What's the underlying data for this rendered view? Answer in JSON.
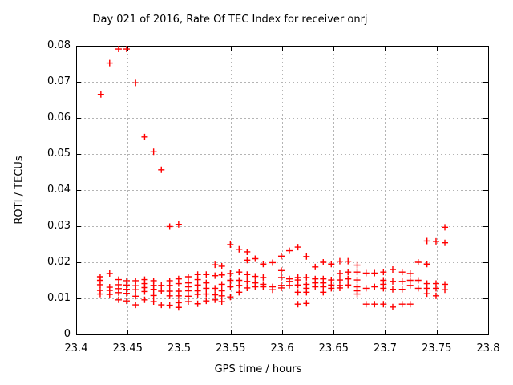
{
  "chart_data": {
    "type": "scatter",
    "title": "Day 021 of 2016, Rate Of TEC Index for receiver onrj",
    "xlabel": "GPS time / hours",
    "ylabel": "ROTI / TECUs",
    "xlim": [
      23.4,
      23.8
    ],
    "ylim": [
      0,
      0.08
    ],
    "xticks": [
      {
        "value": 23.4,
        "label": "23.4"
      },
      {
        "value": 23.45,
        "label": "23.45"
      },
      {
        "value": 23.5,
        "label": "23.5"
      },
      {
        "value": 23.55,
        "label": "23.55"
      },
      {
        "value": 23.6,
        "label": "23.6"
      },
      {
        "value": 23.65,
        "label": "23.65"
      },
      {
        "value": 23.7,
        "label": "23.7"
      },
      {
        "value": 23.75,
        "label": "23.75"
      },
      {
        "value": 23.8,
        "label": "23.8"
      }
    ],
    "yticks": [
      {
        "value": 0,
        "label": "0"
      },
      {
        "value": 0.01,
        "label": "0.01"
      },
      {
        "value": 0.02,
        "label": "0.02"
      },
      {
        "value": 0.03,
        "label": "0.03"
      },
      {
        "value": 0.04,
        "label": "0.04"
      },
      {
        "value": 0.05,
        "label": "0.05"
      },
      {
        "value": 0.06,
        "label": "0.06"
      },
      {
        "value": 0.07,
        "label": "0.07"
      },
      {
        "value": 0.08,
        "label": "0.08"
      }
    ],
    "grid": {
      "show": true,
      "color": "#b4b4b4",
      "style": "dashed"
    },
    "legend": "none",
    "marker": {
      "symbol": "plus",
      "color": "#ff0000",
      "size": 9
    },
    "axis_color": "#000000",
    "background_color": "#ffffff",
    "points": [
      [
        23.4233,
        0.016
      ],
      [
        23.4233,
        0.015
      ],
      [
        23.4233,
        0.0138
      ],
      [
        23.4233,
        0.0122
      ],
      [
        23.4233,
        0.0112
      ],
      [
        23.424,
        0.0665
      ],
      [
        23.4325,
        0.0752
      ],
      [
        23.4325,
        0.0169
      ],
      [
        23.4325,
        0.0131
      ],
      [
        23.4325,
        0.0122
      ],
      [
        23.4325,
        0.0111
      ],
      [
        23.4412,
        0.0791
      ],
      [
        23.4412,
        0.0152
      ],
      [
        23.4412,
        0.0138
      ],
      [
        23.4412,
        0.0127
      ],
      [
        23.4412,
        0.0116
      ],
      [
        23.4412,
        0.0096
      ],
      [
        23.449,
        0.0791
      ],
      [
        23.449,
        0.0149
      ],
      [
        23.449,
        0.0137
      ],
      [
        23.449,
        0.0125
      ],
      [
        23.449,
        0.0114
      ],
      [
        23.449,
        0.0093
      ],
      [
        23.4577,
        0.0697
      ],
      [
        23.4577,
        0.0149
      ],
      [
        23.4577,
        0.0135
      ],
      [
        23.4577,
        0.0124
      ],
      [
        23.4577,
        0.0106
      ],
      [
        23.4577,
        0.0082
      ],
      [
        23.4665,
        0.0547
      ],
      [
        23.4665,
        0.0152
      ],
      [
        23.4665,
        0.0141
      ],
      [
        23.4665,
        0.013
      ],
      [
        23.4665,
        0.0119
      ],
      [
        23.4665,
        0.0096
      ],
      [
        23.4752,
        0.0506
      ],
      [
        23.4752,
        0.0149
      ],
      [
        23.4752,
        0.0136
      ],
      [
        23.4752,
        0.0125
      ],
      [
        23.4752,
        0.0108
      ],
      [
        23.4752,
        0.0091
      ],
      [
        23.4827,
        0.0456
      ],
      [
        23.4827,
        0.0136
      ],
      [
        23.4827,
        0.012
      ],
      [
        23.4827,
        0.0082
      ],
      [
        23.4908,
        0.0299
      ],
      [
        23.4908,
        0.0149
      ],
      [
        23.4908,
        0.0136
      ],
      [
        23.4908,
        0.012
      ],
      [
        23.4908,
        0.0107
      ],
      [
        23.4908,
        0.0081
      ],
      [
        23.4995,
        0.0305
      ],
      [
        23.4995,
        0.0154
      ],
      [
        23.4995,
        0.0141
      ],
      [
        23.4995,
        0.012
      ],
      [
        23.4995,
        0.0107
      ],
      [
        23.4995,
        0.0088
      ],
      [
        23.4995,
        0.0075
      ],
      [
        23.5089,
        0.016
      ],
      [
        23.5089,
        0.0143
      ],
      [
        23.5089,
        0.0132
      ],
      [
        23.5089,
        0.0121
      ],
      [
        23.5089,
        0.0106
      ],
      [
        23.5089,
        0.0091
      ],
      [
        23.518,
        0.0166
      ],
      [
        23.518,
        0.0152
      ],
      [
        23.518,
        0.0137
      ],
      [
        23.518,
        0.0121
      ],
      [
        23.518,
        0.0111
      ],
      [
        23.518,
        0.0085
      ],
      [
        23.5263,
        0.0166
      ],
      [
        23.5263,
        0.0143
      ],
      [
        23.5263,
        0.0128
      ],
      [
        23.5263,
        0.0112
      ],
      [
        23.5263,
        0.0093
      ],
      [
        23.5348,
        0.0193
      ],
      [
        23.5348,
        0.0163
      ],
      [
        23.5348,
        0.0128
      ],
      [
        23.5348,
        0.011
      ],
      [
        23.5348,
        0.0096
      ],
      [
        23.5414,
        0.0189
      ],
      [
        23.5414,
        0.0165
      ],
      [
        23.5414,
        0.0139
      ],
      [
        23.5414,
        0.0121
      ],
      [
        23.5414,
        0.0107
      ],
      [
        23.5414,
        0.0091
      ],
      [
        23.5497,
        0.0249
      ],
      [
        23.5497,
        0.0169
      ],
      [
        23.5497,
        0.015
      ],
      [
        23.5497,
        0.0132
      ],
      [
        23.5497,
        0.0104
      ],
      [
        23.5582,
        0.0236
      ],
      [
        23.5582,
        0.0173
      ],
      [
        23.5582,
        0.015
      ],
      [
        23.5582,
        0.0136
      ],
      [
        23.5582,
        0.0117
      ],
      [
        23.566,
        0.0229
      ],
      [
        23.566,
        0.0206
      ],
      [
        23.566,
        0.0166
      ],
      [
        23.566,
        0.0147
      ],
      [
        23.566,
        0.0129
      ],
      [
        23.5738,
        0.021
      ],
      [
        23.5738,
        0.0161
      ],
      [
        23.5738,
        0.0143
      ],
      [
        23.5738,
        0.0132
      ],
      [
        23.5816,
        0.0195
      ],
      [
        23.5816,
        0.0158
      ],
      [
        23.5816,
        0.0139
      ],
      [
        23.5816,
        0.0132
      ],
      [
        23.5907,
        0.0199
      ],
      [
        23.5907,
        0.0132
      ],
      [
        23.5907,
        0.0124
      ],
      [
        23.5992,
        0.0217
      ],
      [
        23.5992,
        0.0177
      ],
      [
        23.5992,
        0.0158
      ],
      [
        23.5992,
        0.0136
      ],
      [
        23.5992,
        0.0129
      ],
      [
        23.607,
        0.0232
      ],
      [
        23.607,
        0.0154
      ],
      [
        23.607,
        0.0147
      ],
      [
        23.607,
        0.0136
      ],
      [
        23.6153,
        0.0242
      ],
      [
        23.6153,
        0.0158
      ],
      [
        23.6153,
        0.0151
      ],
      [
        23.6153,
        0.0137
      ],
      [
        23.6153,
        0.0117
      ],
      [
        23.6153,
        0.0084
      ],
      [
        23.6236,
        0.0216
      ],
      [
        23.6236,
        0.0158
      ],
      [
        23.6236,
        0.0139
      ],
      [
        23.6236,
        0.0128
      ],
      [
        23.6236,
        0.0117
      ],
      [
        23.6236,
        0.0086
      ],
      [
        23.6321,
        0.0187
      ],
      [
        23.6321,
        0.0154
      ],
      [
        23.6321,
        0.0143
      ],
      [
        23.6321,
        0.0132
      ],
      [
        23.6399,
        0.02
      ],
      [
        23.6399,
        0.0154
      ],
      [
        23.6399,
        0.0143
      ],
      [
        23.6399,
        0.0132
      ],
      [
        23.6399,
        0.0117
      ],
      [
        23.6477,
        0.0195
      ],
      [
        23.6477,
        0.0151
      ],
      [
        23.6477,
        0.0137
      ],
      [
        23.6477,
        0.0128
      ],
      [
        23.656,
        0.0203
      ],
      [
        23.656,
        0.0169
      ],
      [
        23.656,
        0.0151
      ],
      [
        23.656,
        0.0136
      ],
      [
        23.656,
        0.0129
      ],
      [
        23.664,
        0.0203
      ],
      [
        23.664,
        0.0173
      ],
      [
        23.664,
        0.0154
      ],
      [
        23.664,
        0.0137
      ],
      [
        23.6728,
        0.0192
      ],
      [
        23.6728,
        0.0173
      ],
      [
        23.6728,
        0.0151
      ],
      [
        23.6728,
        0.0132
      ],
      [
        23.6728,
        0.0121
      ],
      [
        23.6728,
        0.0112
      ],
      [
        23.6815,
        0.017
      ],
      [
        23.6815,
        0.0128
      ],
      [
        23.6815,
        0.0084
      ],
      [
        23.6897,
        0.017
      ],
      [
        23.6897,
        0.0132
      ],
      [
        23.6897,
        0.0084
      ],
      [
        23.6983,
        0.0173
      ],
      [
        23.6983,
        0.015
      ],
      [
        23.6983,
        0.0139
      ],
      [
        23.6983,
        0.0128
      ],
      [
        23.6983,
        0.0084
      ],
      [
        23.7074,
        0.018
      ],
      [
        23.7074,
        0.0147
      ],
      [
        23.7074,
        0.0125
      ],
      [
        23.7074,
        0.0076
      ],
      [
        23.7165,
        0.0173
      ],
      [
        23.7165,
        0.0147
      ],
      [
        23.7165,
        0.0125
      ],
      [
        23.7165,
        0.0084
      ],
      [
        23.7243,
        0.0169
      ],
      [
        23.7243,
        0.015
      ],
      [
        23.7243,
        0.0136
      ],
      [
        23.7243,
        0.0084
      ],
      [
        23.7321,
        0.02
      ],
      [
        23.7321,
        0.015
      ],
      [
        23.7321,
        0.0128
      ],
      [
        23.7406,
        0.0259
      ],
      [
        23.7406,
        0.0195
      ],
      [
        23.7406,
        0.0141
      ],
      [
        23.7406,
        0.0128
      ],
      [
        23.7406,
        0.0113
      ],
      [
        23.7494,
        0.0258
      ],
      [
        23.7494,
        0.0141
      ],
      [
        23.7494,
        0.0128
      ],
      [
        23.7494,
        0.0107
      ],
      [
        23.758,
        0.0297
      ],
      [
        23.758,
        0.0254
      ],
      [
        23.758,
        0.0139
      ],
      [
        23.758,
        0.0124
      ]
    ]
  }
}
